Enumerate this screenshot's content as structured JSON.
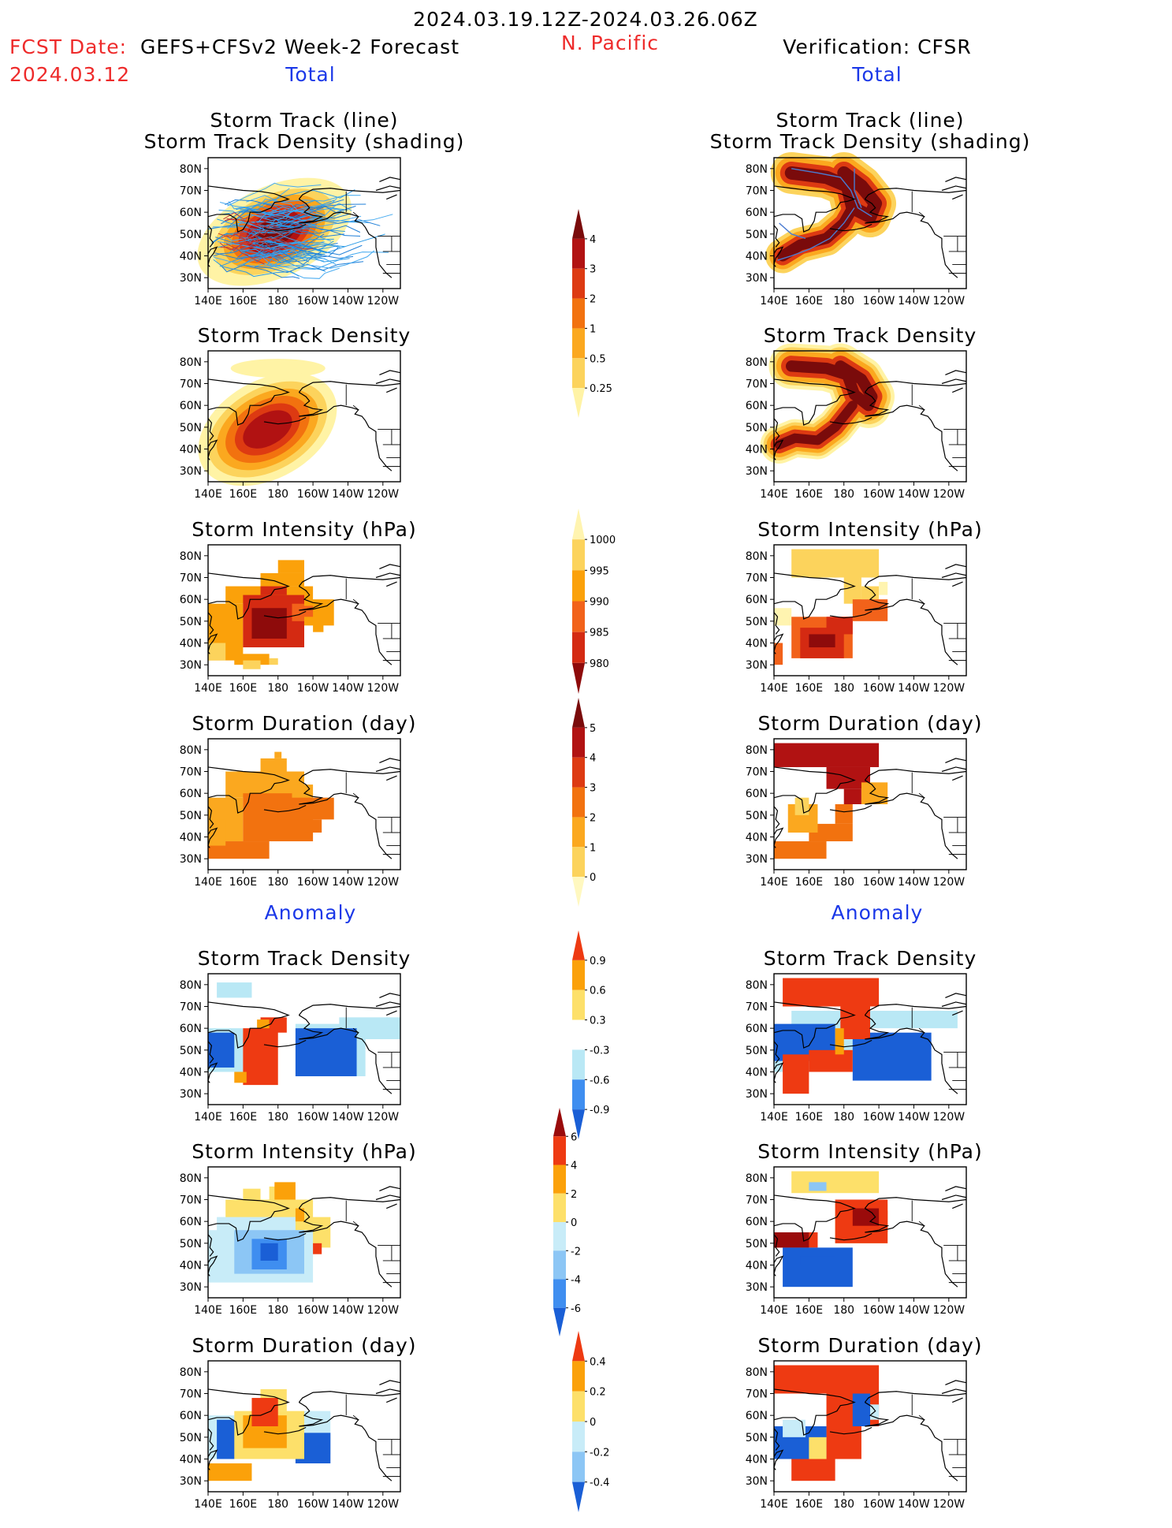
{
  "header": {
    "period": "2024.03.19.12Z-2024.03.26.06Z",
    "fcst_label": "FCST Date:",
    "fcst_date": "2024.03.12",
    "model": "GEFS+CFSv2 Week-2 Forecast",
    "region": "N. Pacific",
    "verification": "Verification: CFSR"
  },
  "sections": {
    "left_total": "Total",
    "right_total": "Total",
    "left_anom": "Anomaly",
    "right_anom": "Anomaly"
  },
  "panel_titles": {
    "track_line": "Storm Track (line)",
    "track_density_shading": "Storm Track Density (shading)",
    "density": "Storm Track Density",
    "intensity": "Storm Intensity (hPa)",
    "duration": "Storm Duration (day)"
  },
  "axes": {
    "lat_ticks": [
      "30N",
      "40N",
      "50N",
      "60N",
      "70N",
      "80N"
    ],
    "lon_ticks": [
      "140E",
      "160E",
      "180",
      "160W",
      "140W",
      "120W"
    ],
    "lat_range": [
      25,
      85
    ],
    "lon_range": [
      140,
      250
    ]
  },
  "colorbars": [
    {
      "name": "density-total",
      "labels": [
        "0.25",
        "0.5",
        "1",
        "2",
        "3",
        "4"
      ],
      "colors": [
        "#fff3a5",
        "#fcd35c",
        "#fba81f",
        "#f2720f",
        "#dd3a12",
        "#b11212",
        "#7a0b0b"
      ]
    },
    {
      "name": "intensity-total",
      "labels": [
        "1000",
        "995",
        "990",
        "985",
        "980"
      ],
      "colors": [
        "#fff4b0",
        "#fcd35c",
        "#fba10a",
        "#f2621a",
        "#d42a12",
        "#8e0b0b"
      ]
    },
    {
      "name": "duration-total",
      "labels": [
        "0",
        "1",
        "2",
        "3",
        "4",
        "5"
      ],
      "colors": [
        "#fff8c0",
        "#fcd35c",
        "#fba81f",
        "#f2720f",
        "#dd3a12",
        "#b11212",
        "#7a0b0b"
      ]
    },
    {
      "name": "density-anom",
      "labels": [
        "-0.9",
        "-0.6",
        "-0.3",
        "0.3",
        "0.6",
        "0.9"
      ],
      "colors": [
        "#1a5fd6",
        "#3f8ef0",
        "#b9e8f5",
        "#ffffff",
        "#fde06a",
        "#fba10a",
        "#ee3a12"
      ]
    },
    {
      "name": "intensity-anom",
      "labels": [
        "-6",
        "-4",
        "-2",
        "0",
        "2",
        "4",
        "6"
      ],
      "colors": [
        "#1a5fd6",
        "#3f8ef0",
        "#8cc6f5",
        "#c8ecf8",
        "#fde06a",
        "#fba10a",
        "#ee3a12",
        "#9a0b0b"
      ]
    },
    {
      "name": "duration-anom",
      "labels": [
        "-0.4",
        "-0.2",
        "0",
        "0.2",
        "0.4"
      ],
      "colors": [
        "#1a5fd6",
        "#8cc6f5",
        "#c8ecf8",
        "#fde06a",
        "#fba10a",
        "#ee3a12"
      ]
    }
  ],
  "chart_data": [
    {
      "type": "heatmap",
      "panel": "GEFS+CFSv2 total storm track + density",
      "track_lines": true,
      "fields": [
        {
          "lon": 180,
          "lat": 52,
          "value": 4
        },
        {
          "lon": 175,
          "lat": 48,
          "value": 4
        },
        {
          "lon": 160,
          "lat": 48,
          "value": 2
        },
        {
          "lon": 195,
          "lat": 58,
          "value": 1
        }
      ]
    },
    {
      "type": "heatmap",
      "panel": "CFSR total storm track + density",
      "track_lines": true,
      "fields": [
        {
          "lon": 168,
          "lat": 72,
          "value": 4
        },
        {
          "lon": 190,
          "lat": 62,
          "value": 4
        },
        {
          "lon": 160,
          "lat": 45,
          "value": 3
        }
      ]
    },
    {
      "type": "heatmap",
      "panel": "GEFS+CFSv2 total storm track density",
      "fields": [
        {
          "lon": 175,
          "lat": 48,
          "value": 4
        },
        {
          "lon": 165,
          "lat": 45,
          "value": 3
        },
        {
          "lon": 180,
          "lat": 77,
          "value": 0.25
        }
      ]
    },
    {
      "type": "heatmap",
      "panel": "CFSR total storm track density",
      "fields": [
        {
          "lon": 168,
          "lat": 72,
          "value": 4
        },
        {
          "lon": 190,
          "lat": 62,
          "value": 4
        },
        {
          "lon": 160,
          "lat": 45,
          "value": 4
        }
      ]
    },
    {
      "type": "heatmap",
      "panel": "GEFS+CFSv2 total storm intensity (hPa)",
      "fields": [
        {
          "lon": 175,
          "lat": 48,
          "value": 980
        },
        {
          "lon": 160,
          "lat": 42,
          "value": 990
        },
        {
          "lon": 185,
          "lat": 68,
          "value": 990
        }
      ]
    },
    {
      "type": "heatmap",
      "panel": "CFSR total storm intensity (hPa)",
      "fields": [
        {
          "lon": 175,
          "lat": 70,
          "value": 995
        },
        {
          "lon": 170,
          "lat": 45,
          "value": 980
        },
        {
          "lon": 145,
          "lat": 50,
          "value": 1000
        }
      ]
    },
    {
      "type": "heatmap",
      "panel": "GEFS+CFSv2 total storm duration (day)",
      "fields": [
        {
          "lon": 175,
          "lat": 50,
          "value": 3
        },
        {
          "lon": 155,
          "lat": 45,
          "value": 2
        },
        {
          "lon": 160,
          "lat": 35,
          "value": 3
        }
      ]
    },
    {
      "type": "heatmap",
      "panel": "CFSR total storm duration (day)",
      "fields": [
        {
          "lon": 170,
          "lat": 75,
          "value": 5
        },
        {
          "lon": 160,
          "lat": 35,
          "value": 3
        },
        {
          "lon": 155,
          "lat": 45,
          "value": 1
        }
      ]
    },
    {
      "type": "heatmap",
      "panel": "GEFS+CFSv2 storm track density anomaly",
      "fields": [
        {
          "lon": 170,
          "lat": 50,
          "value": 0.9
        },
        {
          "lon": 205,
          "lat": 50,
          "value": -0.9
        },
        {
          "lon": 145,
          "lat": 50,
          "value": -0.9
        }
      ]
    },
    {
      "type": "heatmap",
      "panel": "CFSR storm track density anomaly",
      "fields": [
        {
          "lon": 170,
          "lat": 72,
          "value": 0.9
        },
        {
          "lon": 205,
          "lat": 45,
          "value": -0.9
        },
        {
          "lon": 160,
          "lat": 55,
          "value": -0.9
        }
      ]
    },
    {
      "type": "heatmap",
      "panel": "GEFS+CFSv2 storm intensity anomaly (hPa)",
      "fields": [
        {
          "lon": 175,
          "lat": 45,
          "value": -6
        },
        {
          "lon": 180,
          "lat": 68,
          "value": 4
        },
        {
          "lon": 150,
          "lat": 55,
          "value": 2
        }
      ]
    },
    {
      "type": "heatmap",
      "panel": "CFSR storm intensity anomaly (hPa)",
      "fields": [
        {
          "lon": 195,
          "lat": 62,
          "value": 6
        },
        {
          "lon": 150,
          "lat": 50,
          "value": 6
        },
        {
          "lon": 165,
          "lat": 40,
          "value": -6
        }
      ]
    },
    {
      "type": "heatmap",
      "panel": "GEFS+CFSv2 storm duration anomaly (day)",
      "fields": [
        {
          "lon": 175,
          "lat": 60,
          "value": 0.4
        },
        {
          "lon": 200,
          "lat": 45,
          "value": -0.4
        },
        {
          "lon": 150,
          "lat": 35,
          "value": 0.4
        }
      ]
    },
    {
      "type": "heatmap",
      "panel": "CFSR storm duration anomaly (day)",
      "fields": [
        {
          "lon": 170,
          "lat": 75,
          "value": 0.4
        },
        {
          "lon": 155,
          "lat": 45,
          "value": -0.4
        },
        {
          "lon": 195,
          "lat": 62,
          "value": -0.4
        }
      ]
    }
  ]
}
